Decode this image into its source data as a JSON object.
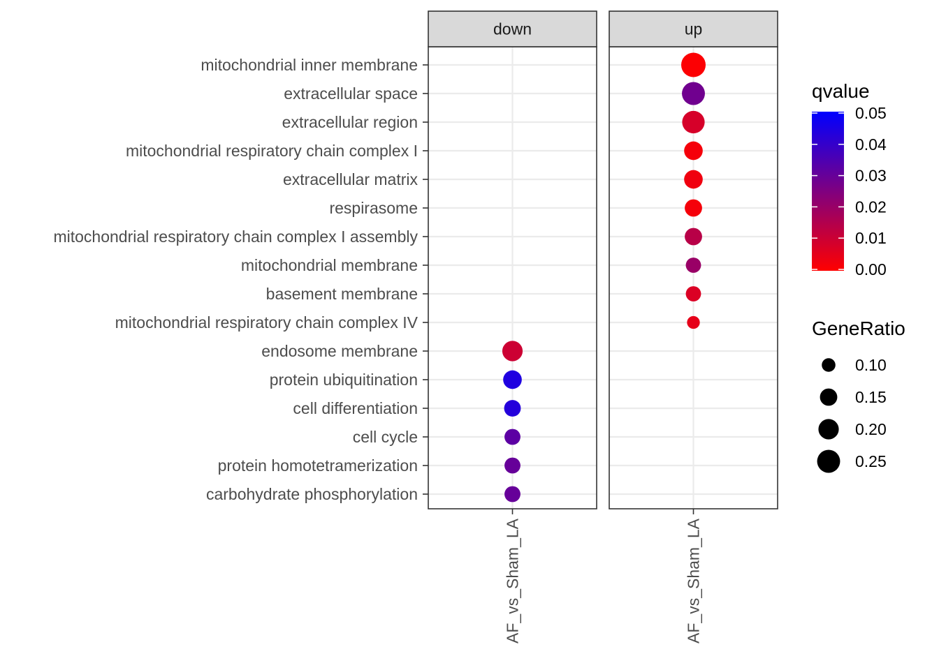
{
  "chart_data": {
    "type": "scatter",
    "facets": [
      "down",
      "up"
    ],
    "x_categories": [
      "AF_vs_Sham_LA"
    ],
    "y_categories": [
      "mitochondrial inner membrane",
      "extracellular space",
      "extracellular region",
      "mitochondrial respiratory chain complex I",
      "extracellular matrix",
      "respirasome",
      "mitochondrial respiratory chain complex I assembly",
      "mitochondrial membrane",
      "basement membrane",
      "mitochondrial respiratory chain complex IV",
      "endosome membrane",
      "protein ubiquitination",
      "cell differentiation",
      "cell cycle",
      "protein homotetramerization",
      "carbohydrate phosphorylation"
    ],
    "points": [
      {
        "facet": "up",
        "term": "mitochondrial inner membrane",
        "generatio": 0.28,
        "qvalue": 0.0005
      },
      {
        "facet": "up",
        "term": "extracellular space",
        "generatio": 0.25,
        "qvalue": 0.028
      },
      {
        "facet": "up",
        "term": "extracellular region",
        "generatio": 0.24,
        "qvalue": 0.008
      },
      {
        "facet": "up",
        "term": "mitochondrial respiratory chain complex I",
        "generatio": 0.17,
        "qvalue": 0.002
      },
      {
        "facet": "up",
        "term": "extracellular matrix",
        "generatio": 0.17,
        "qvalue": 0.003
      },
      {
        "facet": "up",
        "term": "respirasome",
        "generatio": 0.15,
        "qvalue": 0.002
      },
      {
        "facet": "up",
        "term": "mitochondrial respiratory chain complex I assembly",
        "generatio": 0.15,
        "qvalue": 0.014
      },
      {
        "facet": "up",
        "term": "mitochondrial membrane",
        "generatio": 0.12,
        "qvalue": 0.02
      },
      {
        "facet": "up",
        "term": "basement membrane",
        "generatio": 0.12,
        "qvalue": 0.007
      },
      {
        "facet": "up",
        "term": "mitochondrial respiratory chain complex IV",
        "generatio": 0.09,
        "qvalue": 0.005
      },
      {
        "facet": "down",
        "term": "endosome membrane",
        "generatio": 0.2,
        "qvalue": 0.01
      },
      {
        "facet": "down",
        "term": "protein ubiquitination",
        "generatio": 0.17,
        "qvalue": 0.044
      },
      {
        "facet": "down",
        "term": "cell differentiation",
        "generatio": 0.14,
        "qvalue": 0.043
      },
      {
        "facet": "down",
        "term": "cell cycle",
        "generatio": 0.13,
        "qvalue": 0.032
      },
      {
        "facet": "down",
        "term": "protein homotetramerization",
        "generatio": 0.13,
        "qvalue": 0.03
      },
      {
        "facet": "down",
        "term": "carbohydrate phosphorylation",
        "generatio": 0.13,
        "qvalue": 0.03
      }
    ],
    "color_legend": {
      "title": "qvalue",
      "breaks": [
        "0.05",
        "0.04",
        "0.03",
        "0.02",
        "0.01",
        "0.00"
      ],
      "range": [
        0,
        0.05
      ],
      "low_color": "#ff0000",
      "high_color": "#0000ff"
    },
    "size_legend": {
      "title": "GeneRatio",
      "breaks": [
        "0.10",
        "0.15",
        "0.20",
        "0.25"
      ],
      "values": [
        0.1,
        0.15,
        0.2,
        0.25
      ]
    },
    "grid": true,
    "theme": "bw",
    "legend_position": "right"
  }
}
